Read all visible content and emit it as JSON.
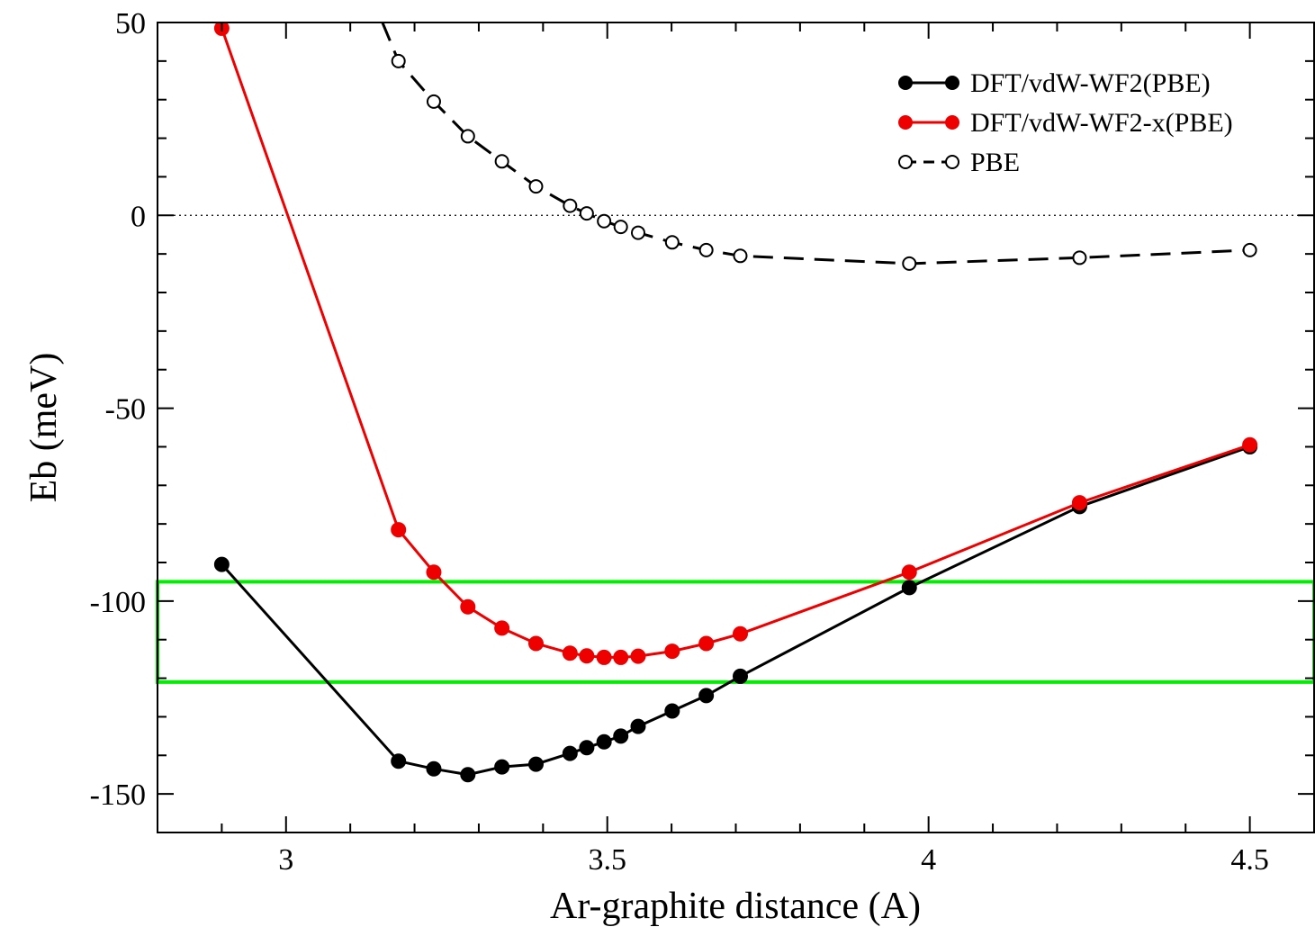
{
  "chart_data": {
    "type": "line",
    "title": "",
    "xlabel": "Ar-graphite distance (A)",
    "ylabel": "Eb (meV)",
    "xlim": [
      2.8,
      4.6
    ],
    "ylim": [
      -160,
      50
    ],
    "x_ticks": [
      3,
      3.5,
      4,
      4.5
    ],
    "x_tick_labels": [
      "3",
      "3.5",
      "4",
      "4.5"
    ],
    "y_ticks": [
      -150,
      -100,
      -50,
      0,
      50
    ],
    "y_tick_labels": [
      "-150",
      "-100",
      "-50",
      "0",
      "50"
    ],
    "grid": false,
    "legend_position": "top-right",
    "zero_line": true,
    "highlight_band": {
      "y": [
        -121,
        -95
      ],
      "color": "#00ee00"
    },
    "series": [
      {
        "name": "DFT/vdW-WF2(PBE)",
        "color": "#000000",
        "marker": "filled-circle",
        "line": "solid",
        "points": [
          [
            2.9,
            -90.5
          ],
          [
            3.175,
            -141.5
          ],
          [
            3.23,
            -143.5
          ],
          [
            3.283,
            -145
          ],
          [
            3.336,
            -143
          ],
          [
            3.389,
            -142.3
          ],
          [
            3.442,
            -139.5
          ],
          [
            3.468,
            -138
          ],
          [
            3.495,
            -136.5
          ],
          [
            3.521,
            -135
          ],
          [
            3.548,
            -132.5
          ],
          [
            3.601,
            -128.5
          ],
          [
            3.654,
            -124.5
          ],
          [
            3.707,
            -119.5
          ],
          [
            3.97,
            -96.5
          ],
          [
            4.235,
            -75.5
          ],
          [
            4.5,
            -60
          ]
        ]
      },
      {
        "name": "DFT/vdW-WF2-x(PBE)",
        "color": "#ee0000",
        "marker": "filled-circle",
        "line": "solid",
        "points": [
          [
            2.9,
            48.5
          ],
          [
            3.175,
            -81.5
          ],
          [
            3.23,
            -92.5
          ],
          [
            3.283,
            -101.5
          ],
          [
            3.336,
            -107
          ],
          [
            3.389,
            -111
          ],
          [
            3.442,
            -113.5
          ],
          [
            3.468,
            -114.2
          ],
          [
            3.495,
            -114.6
          ],
          [
            3.521,
            -114.6
          ],
          [
            3.548,
            -114.3
          ],
          [
            3.601,
            -113
          ],
          [
            3.654,
            -111
          ],
          [
            3.707,
            -108.5
          ],
          [
            3.97,
            -92.5
          ],
          [
            4.235,
            -74.5
          ],
          [
            4.5,
            -59.5
          ]
        ]
      },
      {
        "name": "PBE",
        "color": "#000000",
        "marker": "open-circle",
        "line": "dashed",
        "leading_segment": [
          [
            3.15,
            50
          ]
        ],
        "points": [
          [
            3.175,
            40
          ],
          [
            3.23,
            29.5
          ],
          [
            3.283,
            20.5
          ],
          [
            3.336,
            14
          ],
          [
            3.389,
            7.5
          ],
          [
            3.442,
            2.5
          ],
          [
            3.468,
            0.5
          ],
          [
            3.495,
            -1.5
          ],
          [
            3.521,
            -3
          ],
          [
            3.548,
            -4.5
          ],
          [
            3.601,
            -7
          ],
          [
            3.654,
            -9
          ],
          [
            3.707,
            -10.5
          ],
          [
            3.97,
            -12.5
          ],
          [
            4.235,
            -11
          ],
          [
            4.5,
            -9
          ]
        ]
      }
    ]
  }
}
